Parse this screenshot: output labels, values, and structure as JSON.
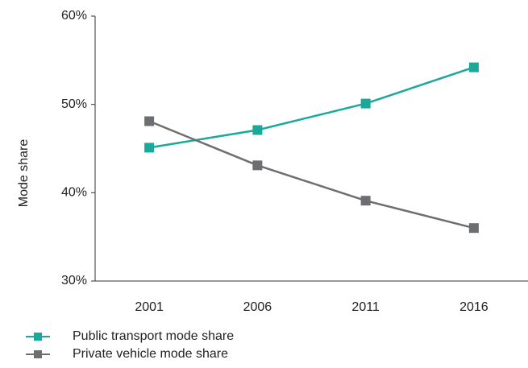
{
  "chart_data": {
    "type": "line",
    "y_label": "Mode share",
    "categories": [
      "2001",
      "2006",
      "2011",
      "2016"
    ],
    "series": [
      {
        "name": "Public transport mode share",
        "color": "#1aa89a",
        "values": [
          45.1,
          47.1,
          50.1,
          54.2
        ]
      },
      {
        "name": "Private vehicle mode share",
        "color": "#6d6e71",
        "values": [
          48.1,
          43.1,
          39.1,
          36
        ]
      }
    ],
    "ylim": [
      30,
      60
    ],
    "yticks": [
      {
        "value": 30,
        "label": "30%"
      },
      {
        "value": 40,
        "label": "40%"
      },
      {
        "value": 50,
        "label": "50%"
      },
      {
        "value": 60,
        "label": "60%"
      }
    ],
    "grid": false,
    "legend": "bottom"
  }
}
